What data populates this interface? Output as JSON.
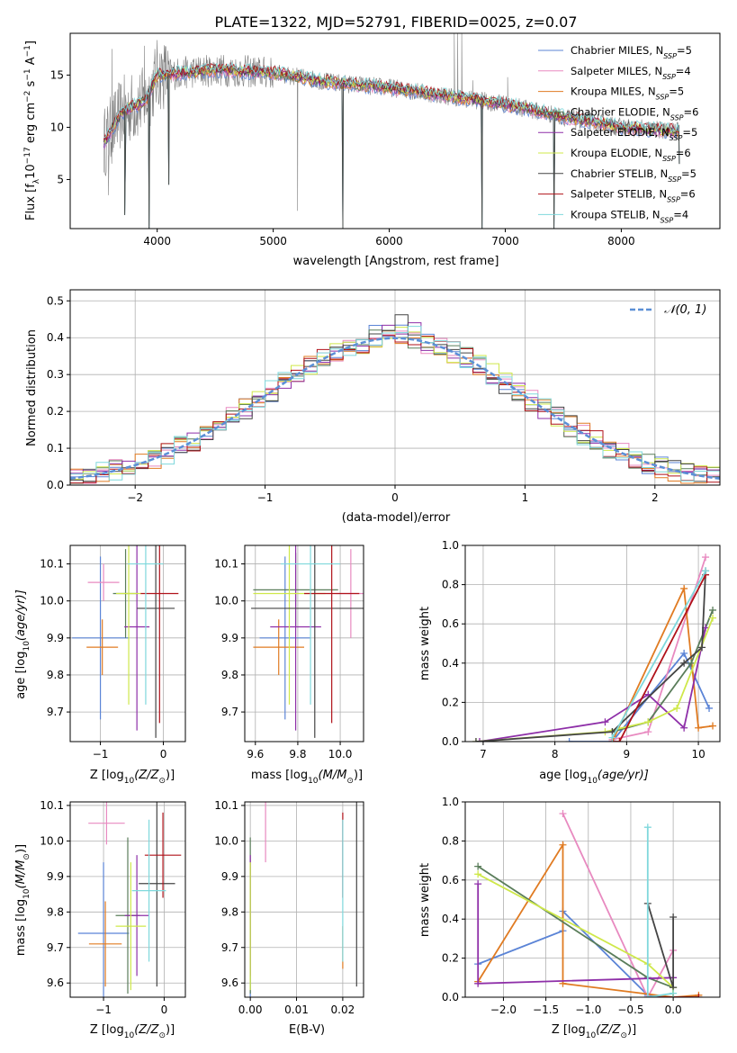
{
  "figure_title": "PLATE=1322, MJD=52791, FIBERID=0025, z=0.07",
  "colors": {
    "Chabrier MILES": "#5b84d6",
    "Salpeter MILES": "#e88ac0",
    "Kroupa MILES": "#e07b22",
    "Chabrier ELODIE": "#5a7d5a",
    "Salpeter ELODIE": "#8e2fa8",
    "Kroupa ELODIE": "#cfe84a",
    "Chabrier STELIB": "#444444",
    "Salpeter STELIB": "#b0121a",
    "Kroupa STELIB": "#7fd8dc",
    "data": "#7f7f7f",
    "normal": "#5b8fd6"
  },
  "chart_data": [
    {
      "id": "spectrum",
      "type": "line",
      "xlabel": "wavelength [Angstrom, rest frame]",
      "xlim": [
        3250,
        8850
      ],
      "ylim": [
        0.3,
        19.0
      ],
      "xticks": [
        4000,
        5000,
        6000,
        7000,
        8000
      ],
      "yticks": [
        5,
        10,
        15
      ],
      "legend_position": "upper right",
      "legend": [
        {
          "name": "Chabrier MILES",
          "label": "Chabrier MILES, N",
          "sub": "SSP",
          "tail": "=5"
        },
        {
          "name": "Salpeter MILES",
          "label": "Salpeter MILES, N",
          "sub": "SSP",
          "tail": "=4"
        },
        {
          "name": "Kroupa MILES",
          "label": "Kroupa MILES, N",
          "sub": "SSP",
          "tail": "=5"
        },
        {
          "name": "Chabrier ELODIE",
          "label": "Chabrier ELODIE, N",
          "sub": "SSP",
          "tail": "=6"
        },
        {
          "name": "Salpeter ELODIE",
          "label": "Salpeter ELODIE, N",
          "sub": "SSP",
          "tail": "=5"
        },
        {
          "name": "Kroupa ELODIE",
          "label": "Kroupa ELODIE, N",
          "sub": "SSP",
          "tail": "=6"
        },
        {
          "name": "Chabrier STELIB",
          "label": "Chabrier STELIB, N",
          "sub": "SSP",
          "tail": "=5"
        },
        {
          "name": "Salpeter STELIB",
          "label": "Salpeter STELIB, N",
          "sub": "SSP",
          "tail": "=6"
        },
        {
          "name": "Kroupa STELIB",
          "label": "Kroupa STELIB, N",
          "sub": "SSP",
          "tail": "=4"
        }
      ],
      "continuum": [
        [
          3540,
          8.5
        ],
        [
          3700,
          11.5
        ],
        [
          3900,
          12.5
        ],
        [
          4000,
          15
        ],
        [
          4500,
          15.5
        ],
        [
          5000,
          15.2
        ],
        [
          5500,
          14.3
        ],
        [
          6000,
          13.8
        ],
        [
          6500,
          13
        ],
        [
          7000,
          12.2
        ],
        [
          7500,
          11
        ],
        [
          8000,
          10
        ],
        [
          8500,
          9.6
        ]
      ],
      "spikes": [
        [
          3580,
          3.5
        ],
        [
          3610,
          17.5
        ],
        [
          3890,
          17.8
        ],
        [
          4050,
          16.5
        ],
        [
          5210,
          2.0
        ],
        [
          6560,
          19.0
        ],
        [
          6590,
          19.0
        ],
        [
          6625,
          19.0
        ],
        [
          6720,
          14.5
        ],
        [
          7020,
          14.8
        ]
      ],
      "model_dips": [
        [
          3720,
          1.6
        ],
        [
          3930,
          0.3
        ],
        [
          4100,
          4.5
        ],
        [
          5600,
          0.3
        ],
        [
          6800,
          0.3
        ],
        [
          7420,
          0.3
        ],
        [
          8500,
          6.5
        ]
      ]
    },
    {
      "id": "residuals",
      "type": "bar",
      "xlabel": "(data-model)/error",
      "ylabel": "Normed distribution",
      "xlim": [
        -2.5,
        2.5
      ],
      "ylim": [
        0.0,
        0.53
      ],
      "xticks": [
        -2,
        -1,
        0,
        1,
        2
      ],
      "yticks": [
        0.0,
        0.1,
        0.2,
        0.3,
        0.4,
        0.5
      ],
      "grid": true,
      "bin_width": 0.1,
      "legend_position": "upper right",
      "legend_label": "N(0, 1)",
      "normal": {
        "mean": 0,
        "sigma": 1
      }
    },
    {
      "id": "age-vs-metallicity",
      "type": "scatter",
      "xlabel_main": "Z [log",
      "xlabel_sub": "10",
      "xlabel_rest": "(Z/Z",
      "xlabel_sun": "⊙",
      "xlabel_end": ")]",
      "ylabel_main": "age  [log",
      "ylabel_sub": "10",
      "ylabel_rest": "(age/yr)]",
      "xlim": [
        -1.48,
        0.35
      ],
      "ylim": [
        9.62,
        10.15
      ],
      "xticks": [
        -1,
        0
      ],
      "yticks": [
        9.7,
        9.8,
        9.9,
        10.0,
        10.1
      ],
      "grid": true,
      "points": [
        {
          "series": "Chabrier MILES",
          "x": -1.0,
          "xerr": 0.45,
          "y": 9.9,
          "yerr": 0.22
        },
        {
          "series": "Salpeter MILES",
          "x": -0.95,
          "xerr": 0.25,
          "y": 10.05,
          "yerr": 0.05
        },
        {
          "series": "Kroupa MILES",
          "x": -0.97,
          "xerr": 0.25,
          "y": 9.875,
          "yerr": 0.075
        },
        {
          "series": "Chabrier ELODIE",
          "x": -0.6,
          "xerr": 0.2,
          "y": 10.02,
          "yerr": 0.12
        },
        {
          "series": "Salpeter ELODIE",
          "x": -0.42,
          "xerr": 0.2,
          "y": 9.93,
          "yerr": 0.28
        },
        {
          "series": "Kroupa ELODIE",
          "x": -0.55,
          "xerr": 0.2,
          "y": 10.02,
          "yerr": 0.3
        },
        {
          "series": "Chabrier STELIB",
          "x": -0.12,
          "xerr": 0.3,
          "y": 9.98,
          "yerr": 0.35
        },
        {
          "series": "Salpeter STELIB",
          "x": -0.06,
          "xerr": 0.3,
          "y": 10.02,
          "yerr": 0.35
        },
        {
          "series": "Kroupa STELIB",
          "x": -0.28,
          "xerr": 0.28,
          "y": 10.1,
          "yerr": 0.38
        }
      ]
    },
    {
      "id": "age-vs-mass",
      "type": "scatter",
      "xlabel_main": "mass [log",
      "xlabel_sub": "10",
      "xlabel_rest": "(M/M",
      "xlabel_sun": "⊙",
      "xlabel_end": ")]",
      "xlim": [
        9.55,
        10.11
      ],
      "ylim": [
        9.62,
        10.15
      ],
      "xticks": [
        9.6,
        9.8,
        10.0
      ],
      "yticks": [
        9.7,
        9.8,
        9.9,
        10.0,
        10.1
      ],
      "grid": true,
      "points": [
        {
          "series": "Chabrier MILES",
          "x": 9.74,
          "xerr": 0.12,
          "y": 9.9,
          "yerr": 0.22
        },
        {
          "series": "Salpeter MILES",
          "x": 10.05,
          "xerr": 0.07,
          "y": 10.02,
          "yerr": 0.12
        },
        {
          "series": "Kroupa MILES",
          "x": 9.71,
          "xerr": 0.12,
          "y": 9.875,
          "yerr": 0.075
        },
        {
          "series": "Chabrier ELODIE",
          "x": 9.79,
          "xerr": 0.2,
          "y": 10.03,
          "yerr": 0.1
        },
        {
          "series": "Salpeter ELODIE",
          "x": 9.79,
          "xerr": 0.12,
          "y": 9.93,
          "yerr": 0.28
        },
        {
          "series": "Kroupa ELODIE",
          "x": 9.76,
          "xerr": 0.17,
          "y": 10.02,
          "yerr": 0.3
        },
        {
          "series": "Chabrier STELIB",
          "x": 9.88,
          "xerr": 0.3,
          "y": 9.98,
          "yerr": 0.35
        },
        {
          "series": "Salpeter STELIB",
          "x": 9.96,
          "xerr": 0.13,
          "y": 10.02,
          "yerr": 0.35
        },
        {
          "series": "Kroupa STELIB",
          "x": 9.86,
          "xerr": 0.14,
          "y": 10.1,
          "yerr": 0.38
        }
      ]
    },
    {
      "id": "mass-weight-vs-age",
      "type": "line",
      "xlabel_main": "age  [log",
      "xlabel_sub": "10",
      "xlabel_rest": "(age/yr)]",
      "ylabel": "mass weight",
      "xlim": [
        6.75,
        10.3
      ],
      "ylim": [
        0.0,
        1.0
      ],
      "xticks": [
        7,
        8,
        9,
        10
      ],
      "yticks": [
        0.0,
        0.2,
        0.4,
        0.6,
        0.8,
        1.0
      ],
      "grid": true,
      "series": [
        {
          "name": "Chabrier MILES",
          "points": [
            [
              8.2,
              0.0
            ],
            [
              8.8,
              0.0
            ],
            [
              9.8,
              0.45
            ],
            [
              10.15,
              0.17
            ]
          ]
        },
        {
          "name": "Salpeter MILES",
          "points": [
            [
              8.8,
              0.01
            ],
            [
              9.3,
              0.05
            ],
            [
              10.1,
              0.94
            ]
          ]
        },
        {
          "name": "Kroupa MILES",
          "points": [
            [
              8.8,
              0.0
            ],
            [
              9.8,
              0.78
            ],
            [
              10.0,
              0.07
            ],
            [
              10.2,
              0.08
            ]
          ]
        },
        {
          "name": "Chabrier ELODIE",
          "points": [
            [
              8.8,
              0.05
            ],
            [
              9.3,
              0.1
            ],
            [
              9.9,
              0.4
            ],
            [
              10.2,
              0.67
            ]
          ]
        },
        {
          "name": "Salpeter ELODIE",
          "points": [
            [
              6.95,
              0.0
            ],
            [
              8.7,
              0.1
            ],
            [
              9.3,
              0.24
            ],
            [
              9.8,
              0.07
            ],
            [
              10.1,
              0.58
            ]
          ]
        },
        {
          "name": "Kroupa ELODIE",
          "points": [
            [
              6.9,
              0.0
            ],
            [
              8.7,
              0.05
            ],
            [
              9.3,
              0.1
            ],
            [
              9.7,
              0.17
            ],
            [
              10.2,
              0.63
            ]
          ]
        },
        {
          "name": "Chabrier STELIB",
          "points": [
            [
              6.9,
              0.0
            ],
            [
              8.8,
              0.05
            ],
            [
              9.8,
              0.4
            ],
            [
              10.05,
              0.48
            ],
            [
              10.1,
              0.87
            ]
          ]
        },
        {
          "name": "Salpeter STELIB",
          "points": [
            [
              8.8,
              0.0
            ],
            [
              8.9,
              0.0
            ],
            [
              10.1,
              0.85
            ]
          ]
        },
        {
          "name": "Kroupa STELIB",
          "points": [
            [
              8.8,
              0.02
            ],
            [
              10.1,
              0.87
            ]
          ]
        }
      ]
    },
    {
      "id": "mass-vs-metallicity",
      "type": "scatter",
      "xlabel_main": "Z [log",
      "xlabel_sub": "10",
      "xlabel_rest": "(Z/Z",
      "xlabel_sun": "⊙",
      "xlabel_end": ")]",
      "ylabel_main": "mass [log",
      "ylabel_sub": "10",
      "ylabel_rest": "(M/M",
      "ylabel_sun": "⊙",
      "ylabel_end": ")]",
      "xlim": [
        -1.55,
        0.35
      ],
      "ylim": [
        9.56,
        10.11
      ],
      "xticks": [
        -1,
        0
      ],
      "yticks": [
        9.6,
        9.7,
        9.8,
        9.9,
        10.0,
        10.1
      ],
      "grid": true,
      "points": [
        {
          "series": "Chabrier MILES",
          "x": -1.0,
          "xerr": 0.42,
          "y": 9.74,
          "yerr": 0.2
        },
        {
          "series": "Salpeter MILES",
          "x": -0.95,
          "xerr": 0.3,
          "y": 10.05,
          "yerr": 0.06
        },
        {
          "series": "Kroupa MILES",
          "x": -0.97,
          "xerr": 0.27,
          "y": 9.71,
          "yerr": 0.12
        },
        {
          "series": "Chabrier ELODIE",
          "x": -0.6,
          "xerr": 0.2,
          "y": 9.79,
          "yerr": 0.22
        },
        {
          "series": "Salpeter ELODIE",
          "x": -0.45,
          "xerr": 0.2,
          "y": 9.79,
          "yerr": 0.17
        },
        {
          "series": "Kroupa ELODIE",
          "x": -0.55,
          "xerr": 0.25,
          "y": 9.76,
          "yerr": 0.18
        },
        {
          "series": "Chabrier STELIB",
          "x": -0.12,
          "xerr": 0.3,
          "y": 9.88,
          "yerr": 0.29
        },
        {
          "series": "Salpeter STELIB",
          "x": -0.02,
          "xerr": 0.3,
          "y": 9.96,
          "yerr": 0.12
        },
        {
          "series": "Kroupa STELIB",
          "x": -0.25,
          "xerr": 0.28,
          "y": 9.86,
          "yerr": 0.2
        }
      ]
    },
    {
      "id": "mass-vs-ebv",
      "type": "scatter",
      "xlabel": "E(B-V)",
      "xlim": [
        -0.0012,
        0.0245
      ],
      "ylim": [
        9.56,
        10.11
      ],
      "xticks": [
        0.0,
        0.01,
        0.02
      ],
      "yticks": [
        9.6,
        9.7,
        9.8,
        9.9,
        10.0,
        10.1
      ],
      "grid": true,
      "points": [
        {
          "series": "Chabrier MILES",
          "x": 0.0,
          "y": 9.74,
          "yerr": 0.2
        },
        {
          "series": "Salpeter MILES",
          "x": 0.0033,
          "y": 10.03,
          "yerr": 0.09
        },
        {
          "series": "Kroupa MILES",
          "x": 0.02,
          "y": 9.7,
          "yerr": 0.06
        },
        {
          "series": "Chabrier ELODIE",
          "x": 0.0,
          "y": 9.79,
          "yerr": 0.22
        },
        {
          "series": "Salpeter ELODIE",
          "x": 0.0,
          "y": 9.79,
          "yerr": 0.17
        },
        {
          "series": "Kroupa ELODIE",
          "x": 0.0,
          "y": 9.76,
          "yerr": 0.18
        },
        {
          "series": "Chabrier STELIB",
          "x": 0.023,
          "y": 9.88,
          "yerr": 0.29
        },
        {
          "series": "Salpeter STELIB",
          "x": 0.02,
          "y": 9.96,
          "yerr": 0.12
        },
        {
          "series": "Kroupa STELIB",
          "x": 0.02,
          "y": 9.86,
          "yerr": 0.2
        }
      ]
    },
    {
      "id": "mass-weight-vs-metallicity",
      "type": "line",
      "xlabel_main": "Z [log",
      "xlabel_sub": "10",
      "xlabel_rest": "(Z/Z",
      "xlabel_sun": "⊙",
      "xlabel_end": ")]",
      "ylabel": "mass weight",
      "xlim": [
        -2.45,
        0.55
      ],
      "ylim": [
        0.0,
        1.0
      ],
      "xticks": [
        -2.0,
        -1.5,
        -1.0,
        -0.5,
        0.0
      ],
      "yticks": [
        0.0,
        0.2,
        0.4,
        0.6,
        0.8,
        1.0
      ],
      "grid": true,
      "series": [
        {
          "name": "Chabrier MILES",
          "points": [
            [
              -2.3,
              0.17
            ],
            [
              -1.3,
              0.34
            ],
            [
              -1.3,
              0.44
            ],
            [
              -0.3,
              0.01
            ],
            [
              0.0,
              0.0
            ]
          ]
        },
        {
          "name": "Salpeter MILES",
          "points": [
            [
              -1.3,
              0.94
            ],
            [
              -0.3,
              0.0
            ],
            [
              0.0,
              0.24
            ]
          ]
        },
        {
          "name": "Kroupa MILES",
          "points": [
            [
              -2.3,
              0.08
            ],
            [
              -1.3,
              0.78
            ],
            [
              -1.3,
              0.07
            ],
            [
              0.0,
              0.0
            ],
            [
              0.3,
              0.01
            ]
          ]
        },
        {
          "name": "Chabrier ELODIE",
          "points": [
            [
              -2.3,
              0.67
            ],
            [
              -0.3,
              0.1
            ],
            [
              0.0,
              0.05
            ],
            [
              0.0,
              0.0
            ]
          ]
        },
        {
          "name": "Salpeter ELODIE",
          "points": [
            [
              -2.3,
              0.58
            ],
            [
              -2.3,
              0.07
            ],
            [
              0.0,
              0.1
            ]
          ]
        },
        {
          "name": "Kroupa ELODIE",
          "points": [
            [
              -2.3,
              0.63
            ],
            [
              -0.3,
              0.17
            ],
            [
              0.0,
              0.05
            ],
            [
              0.0,
              0.0
            ]
          ]
        },
        {
          "name": "Chabrier STELIB",
          "points": [
            [
              -0.3,
              0.48
            ],
            [
              0.0,
              0.05
            ],
            [
              0.0,
              0.41
            ]
          ]
        },
        {
          "name": "Salpeter STELIB",
          "points": [
            [
              -0.3,
              0.0
            ],
            [
              0.0,
              0.0
            ],
            [
              0.3,
              0.0
            ]
          ]
        },
        {
          "name": "Kroupa STELIB",
          "points": [
            [
              -0.3,
              0.87
            ],
            [
              -0.3,
              0.0
            ],
            [
              0.0,
              0.02
            ]
          ]
        }
      ]
    }
  ]
}
